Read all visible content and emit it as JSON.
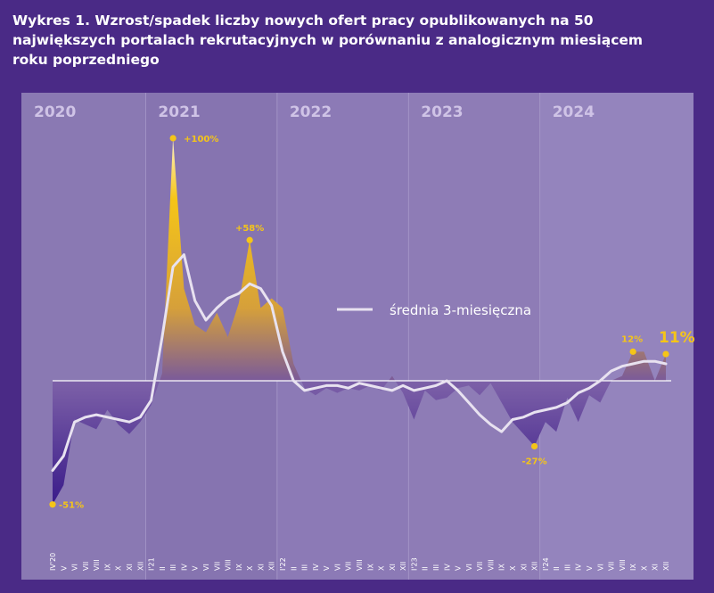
{
  "title": {
    "lines": [
      "Wykres 1. Wzrost/spadek liczby nowych ofert pracy opublikowanych na 50",
      "największych portalach rekrutacyjnych w porównaniu z analogicznym miesiącem",
      "roku poprzedniego"
    ]
  },
  "colors": {
    "background": "#4a2a86",
    "panel": "#8e7cb6",
    "positive_top": "#f5c518",
    "negative_bottom": "#3a1b8a",
    "average_line": "#e8e2f0",
    "annotation": "#f5c518"
  },
  "chart_data": {
    "type": "area",
    "years": [
      "2020",
      "2021",
      "2022",
      "2023",
      "2024"
    ],
    "x": [
      "IV'20",
      "V",
      "VI",
      "VII",
      "VIII",
      "IX",
      "X",
      "XI",
      "XII",
      "I'21",
      "II",
      "III",
      "IV",
      "V",
      "VI",
      "VII",
      "VIII",
      "IX",
      "X",
      "XI",
      "XII",
      "I'22",
      "II",
      "III",
      "IV",
      "V",
      "VI",
      "VII",
      "VIII",
      "IX",
      "X",
      "XI",
      "XII",
      "I'23",
      "II",
      "III",
      "IV",
      "V",
      "VI",
      "VII",
      "VIII",
      "IX",
      "X",
      "XI",
      "XII",
      "I'24",
      "II",
      "III",
      "IV",
      "V",
      "VI",
      "VII",
      "VIII",
      "IX",
      "X",
      "XI",
      "XII"
    ],
    "series": [
      {
        "values": [
          -51,
          -43,
          -16,
          -18,
          -20,
          -12,
          -18,
          -22,
          -17,
          -10,
          3,
          100,
          38,
          23,
          20,
          28,
          18,
          32,
          58,
          30,
          34,
          30,
          7,
          -3,
          -6,
          -3,
          -5,
          -3,
          -4,
          -2,
          -4,
          2,
          -5,
          -16,
          -4,
          -8,
          -7,
          -3,
          -2,
          -6,
          -1,
          -9,
          -17,
          -22,
          -27,
          -17,
          -21,
          -7,
          -17,
          -6,
          -9,
          0,
          2,
          12,
          12,
          0,
          11
        ]
      },
      {
        "name": "średnia 3-miesięczna",
        "values": [
          -37,
          -31,
          -17,
          -15,
          -14,
          -15,
          -16,
          -17,
          -15,
          -8,
          18,
          47,
          52,
          33,
          25,
          30,
          34,
          36,
          40,
          38,
          31,
          12,
          0,
          -4,
          -3,
          -2,
          -2,
          -3,
          -1,
          -2,
          -3,
          -4,
          -2,
          -4,
          -3,
          -2,
          0,
          -4,
          -9,
          -14,
          -18,
          -21,
          -16,
          -15,
          -13,
          -12,
          -11,
          -9,
          -5,
          -3,
          0,
          4,
          6,
          7,
          8,
          8,
          7
        ]
      }
    ],
    "annotations": [
      {
        "label": "-51%",
        "index": 0,
        "value": -51
      },
      {
        "label": "+100%",
        "index": 11,
        "value": 100
      },
      {
        "label": "+58%",
        "index": 18,
        "value": 58
      },
      {
        "label": "-27%",
        "index": 44,
        "value": -27
      },
      {
        "label": "12%",
        "index": 53,
        "value": 12
      },
      {
        "label": "11%",
        "index": 56,
        "value": 11
      }
    ],
    "legend": {
      "label": "średnia 3-miesięczna",
      "position": "center-right"
    },
    "ylim": [
      -55,
      105
    ],
    "grid": false
  }
}
